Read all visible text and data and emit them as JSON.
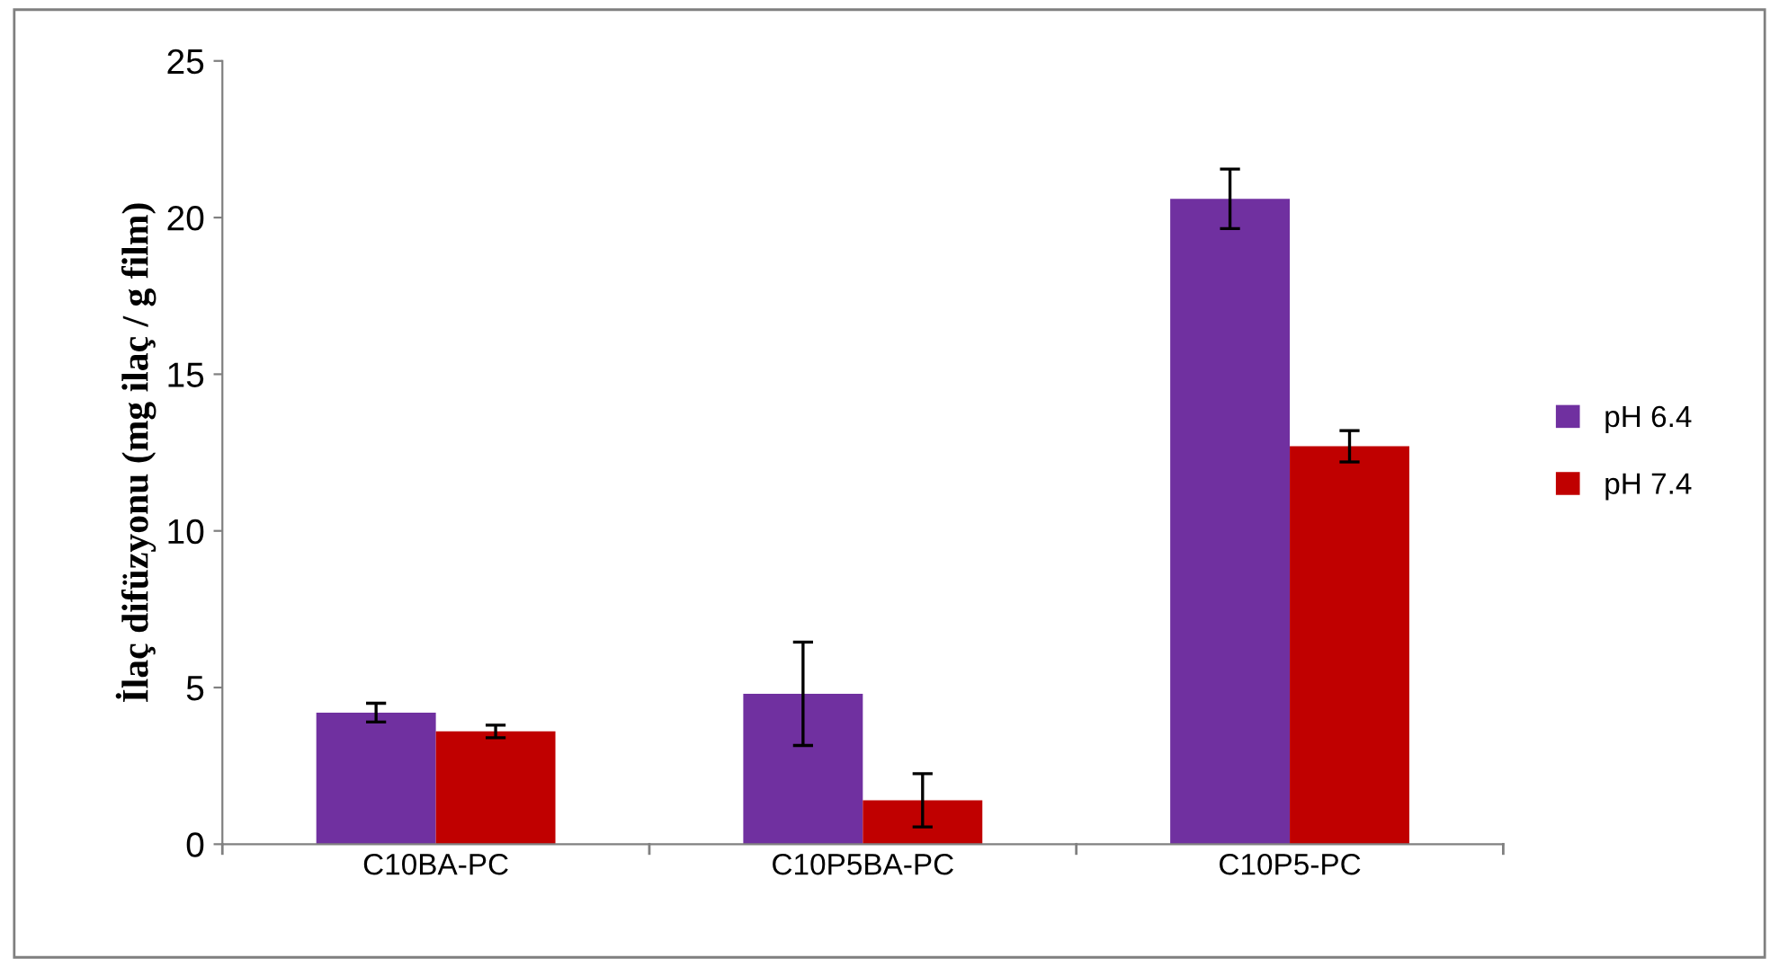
{
  "chart_data": {
    "type": "bar",
    "ylabel": "İlaç difüzyonu (mg ilaç / g film)",
    "categories": [
      "C10BA-PC",
      "C10P5BA-PC",
      "C10P5-PC"
    ],
    "series": [
      {
        "name": "pH 6.4",
        "color": "#7030a0",
        "values": [
          4.2,
          4.8,
          20.6
        ],
        "errors": [
          0.3,
          1.65,
          0.95
        ]
      },
      {
        "name": "pH 7.4",
        "color": "#c00000",
        "values": [
          3.6,
          1.4,
          12.7
        ],
        "errors": [
          0.2,
          0.85,
          0.5
        ]
      }
    ],
    "ylim": [
      0,
      25
    ],
    "yticks": [
      0,
      5,
      10,
      15,
      20,
      25
    ],
    "grid": false,
    "legend": "right"
  }
}
